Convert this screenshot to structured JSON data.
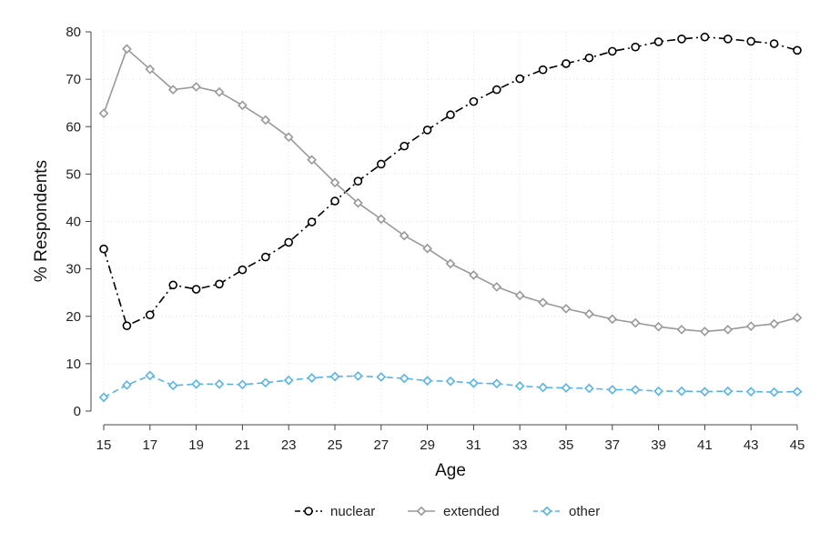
{
  "chart_data": {
    "type": "line",
    "xlabel": "Age",
    "ylabel": "% Respondents",
    "xlim": [
      15,
      45
    ],
    "ylim": [
      0,
      80
    ],
    "x_ticks": [
      15,
      17,
      19,
      21,
      23,
      25,
      27,
      29,
      31,
      33,
      35,
      37,
      39,
      41,
      43,
      45
    ],
    "y_ticks": [
      0,
      10,
      20,
      30,
      40,
      50,
      60,
      70,
      80
    ],
    "grid": true,
    "legend_position": "bottom",
    "x": [
      15,
      16,
      17,
      18,
      19,
      20,
      21,
      22,
      23,
      24,
      25,
      26,
      27,
      28,
      29,
      30,
      31,
      32,
      33,
      34,
      35,
      36,
      37,
      38,
      39,
      40,
      41,
      42,
      43,
      44,
      45
    ],
    "series": [
      {
        "name": "nuclear",
        "color": "#000000",
        "marker": "circle",
        "line_style": "dash-dot",
        "values": [
          34.2,
          18.0,
          20.3,
          26.6,
          25.7,
          26.8,
          29.8,
          32.5,
          35.6,
          39.9,
          44.3,
          48.5,
          52.1,
          55.9,
          59.3,
          62.5,
          65.3,
          67.8,
          70.1,
          72.0,
          73.3,
          74.5,
          75.9,
          76.8,
          77.9,
          78.5,
          78.9,
          78.5,
          78.0,
          77.5,
          76.1
        ]
      },
      {
        "name": "extended",
        "color": "#999999",
        "marker": "diamond",
        "line_style": "solid",
        "values": [
          62.8,
          76.4,
          72.1,
          67.8,
          68.4,
          67.3,
          64.5,
          61.4,
          57.8,
          53.0,
          48.2,
          43.9,
          40.5,
          37.0,
          34.3,
          31.1,
          28.7,
          26.2,
          24.4,
          22.9,
          21.6,
          20.5,
          19.4,
          18.6,
          17.8,
          17.2,
          16.8,
          17.2,
          17.9,
          18.4,
          19.7
        ]
      },
      {
        "name": "other",
        "color": "#56b4e9",
        "marker": "diamond",
        "line_style": "dashed",
        "values": [
          2.9,
          5.5,
          7.5,
          5.4,
          5.7,
          5.7,
          5.6,
          6.0,
          6.5,
          7.0,
          7.3,
          7.4,
          7.2,
          6.9,
          6.4,
          6.3,
          5.9,
          5.8,
          5.3,
          5.0,
          4.9,
          4.8,
          4.5,
          4.5,
          4.2,
          4.2,
          4.1,
          4.2,
          4.1,
          4.0,
          4.1
        ]
      }
    ]
  }
}
